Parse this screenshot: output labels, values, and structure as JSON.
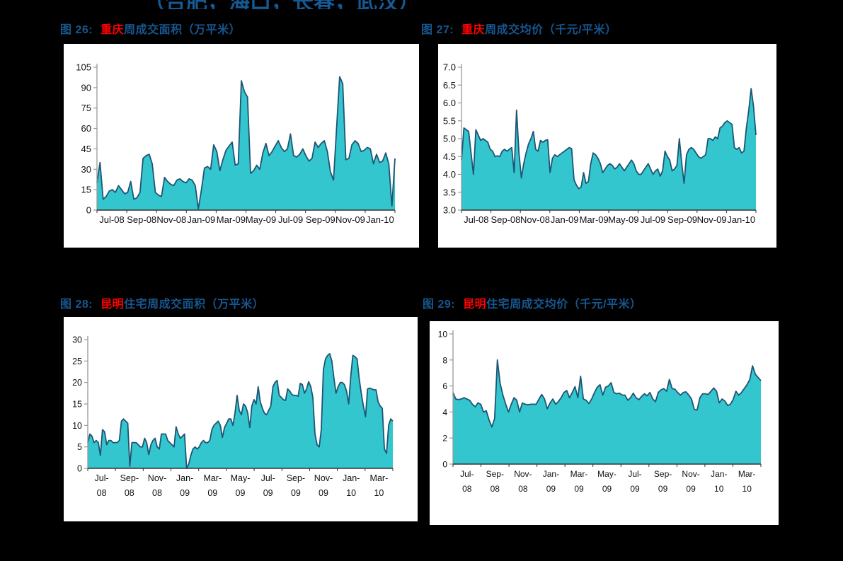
{
  "page": {
    "top_title": "（合肥，海口，长春，武汉）"
  },
  "colors": {
    "page_bg": "#000000",
    "chart_bg": "#FFFFFF",
    "title_blue": "#155A94",
    "caption_blue": "#17568F",
    "city_red": "#FF0000",
    "area_fill": "#34C6CE",
    "area_stroke": "#1D5573",
    "y_axis": "#999999",
    "x_axis": "#333333",
    "tick_text": "#111111"
  },
  "figures": [
    {
      "label": "图 26:",
      "city": "重庆",
      "rest": "周成交面积（万平米）"
    },
    {
      "label": "图 27:",
      "city": "重庆",
      "rest": "周成交均价（千元/平米）"
    },
    {
      "label": "图 28:",
      "city": "昆明",
      "rest": "住宅周成交面积（万平米）"
    },
    {
      "label": "图 29:",
      "city": "昆明",
      "rest": "住宅周成交均价（千元/平米）"
    }
  ],
  "chart_data": [
    {
      "type": "area",
      "title": "重庆周成交面积（万平米）",
      "ylim": [
        0,
        105
      ],
      "yticks": [
        "0",
        "15",
        "30",
        "45",
        "60",
        "75",
        "90",
        "105"
      ],
      "x_label_style": "single",
      "x_labels": [
        "Jul-08",
        "Sep-08",
        "Nov-08",
        "Jan-09",
        "Mar-09",
        "May-09",
        "Jul-09",
        "Sep-09",
        "Nov-09",
        "Jan-10"
      ],
      "values": [
        20,
        35,
        8,
        10,
        14,
        15,
        13,
        18,
        15,
        12,
        13,
        21,
        8,
        9,
        13,
        38,
        40,
        41,
        34,
        13,
        11,
        10,
        24,
        21,
        19,
        18,
        22,
        23,
        21,
        20,
        23,
        22,
        18,
        1,
        15,
        31,
        32,
        30,
        48,
        43,
        29,
        37,
        44,
        47,
        50,
        33,
        34,
        95,
        87,
        83,
        27,
        29,
        33,
        30,
        42,
        49,
        40,
        43,
        47,
        51,
        46,
        43,
        45,
        56,
        40,
        39,
        41,
        45,
        40,
        36,
        38,
        50,
        46,
        49,
        51,
        43,
        28,
        22,
        60,
        98,
        93,
        37,
        38,
        48,
        51,
        49,
        43,
        44,
        46,
        45,
        34,
        41,
        35,
        36,
        42,
        34,
        3,
        38
      ]
    },
    {
      "type": "area",
      "title": "重庆周成交均价（千元/平米）",
      "ylim": [
        3.0,
        7.0
      ],
      "yticks": [
        "3.0",
        "3.5",
        "4.0",
        "4.5",
        "5.0",
        "5.5",
        "6.0",
        "6.5",
        "7.0"
      ],
      "x_label_style": "single",
      "x_labels": [
        "Jul-08",
        "Sep-08",
        "Nov-08",
        "Jan-09",
        "Mar-09",
        "May-09",
        "Jul-09",
        "Sep-09",
        "Nov-09",
        "Jan-10"
      ],
      "values": [
        4.4,
        5.3,
        5.25,
        5.2,
        4.6,
        4.0,
        5.25,
        5.1,
        4.95,
        5.0,
        4.95,
        4.9,
        4.7,
        4.65,
        4.5,
        4.52,
        4.5,
        4.65,
        4.7,
        4.65,
        4.7,
        4.75,
        4.05,
        5.8,
        4.6,
        3.9,
        4.3,
        4.6,
        4.85,
        5.0,
        5.2,
        4.7,
        4.65,
        4.95,
        4.9,
        4.95,
        4.97,
        4.05,
        4.45,
        4.55,
        4.5,
        4.55,
        4.6,
        4.65,
        4.7,
        4.75,
        4.72,
        3.85,
        3.7,
        3.6,
        3.65,
        4.05,
        3.75,
        3.8,
        4.3,
        4.6,
        4.55,
        4.45,
        4.3,
        4.05,
        4.15,
        4.25,
        4.3,
        4.25,
        4.15,
        4.2,
        4.3,
        4.2,
        4.1,
        4.2,
        4.3,
        4.4,
        4.3,
        4.1,
        4.0,
        4.0,
        4.1,
        4.2,
        4.3,
        4.15,
        4.0,
        4.1,
        4.15,
        3.95,
        4.1,
        4.65,
        4.5,
        4.4,
        4.1,
        4.15,
        4.25,
        5.0,
        4.3,
        3.75,
        4.55,
        4.7,
        4.75,
        4.7,
        4.6,
        4.5,
        4.45,
        4.5,
        4.55,
        5.0,
        5.0,
        4.95,
        5.05,
        5.0,
        5.3,
        5.35,
        5.45,
        5.5,
        5.45,
        5.4,
        4.75,
        4.7,
        4.75,
        4.6,
        4.65,
        5.3,
        5.8,
        6.4,
        5.9,
        5.1
      ]
    },
    {
      "type": "area",
      "title": "昆明住宅周成交面积（万平米）",
      "ylim": [
        0,
        30
      ],
      "yticks": [
        "0",
        "5",
        "10",
        "15",
        "20",
        "25",
        "30"
      ],
      "x_label_style": "two-line",
      "x_labels": [
        "Jul-08",
        "Sep-08",
        "Nov-08",
        "Jan-09",
        "Mar-09",
        "May-09",
        "Jul-09",
        "Sep-09",
        "Nov-09",
        "Jan-10",
        "Mar-10"
      ],
      "values": [
        6,
        8,
        7.5,
        6,
        6.5,
        6,
        3,
        9,
        8.5,
        5.5,
        6.5,
        6.5,
        6,
        6,
        6,
        6.5,
        11,
        11.5,
        11,
        10.5,
        0.5,
        6,
        6,
        6,
        5.5,
        5,
        5,
        7,
        6,
        3.2,
        5.5,
        6.5,
        7,
        5,
        4.5,
        8,
        8,
        8,
        6.5,
        6,
        5.5,
        5,
        9.7,
        8,
        7,
        7.5,
        8,
        0,
        1,
        3,
        4.5,
        5,
        4.5,
        5,
        6,
        6.5,
        6,
        6,
        6.5,
        9,
        10,
        10.5,
        11,
        10,
        7.2,
        9.5,
        10.5,
        11.5,
        11.5,
        10,
        13,
        17,
        13.5,
        12.5,
        15,
        14.5,
        13,
        9.5,
        14.5,
        16,
        15,
        19,
        15.5,
        14,
        12.8,
        12.5,
        13.5,
        14.5,
        19,
        20,
        20.5,
        17,
        16.5,
        16,
        15.8,
        18.5,
        18,
        17.2,
        17,
        17,
        16.8,
        19.8,
        19.5,
        17.5,
        18.5,
        20.2,
        19,
        16.5,
        8,
        5.5,
        5,
        9,
        23,
        25.5,
        26.3,
        26.7,
        25,
        21,
        17.5,
        19,
        20,
        20,
        19.5,
        18,
        15,
        21.5,
        26.3,
        26,
        25.5,
        21,
        17.5,
        14.5,
        12,
        18.5,
        18.7,
        18.5,
        18.3,
        18.3,
        15.5,
        14.5,
        14,
        4.5,
        3.5,
        10,
        11.5,
        11
      ]
    },
    {
      "type": "area",
      "title": "昆明住宅周成交均价（千元/平米）",
      "ylim": [
        0,
        10
      ],
      "yticks": [
        "0",
        "2",
        "4",
        "6",
        "8",
        "10"
      ],
      "x_label_style": "two-line",
      "x_labels": [
        "Jul-08",
        "Sep-08",
        "Nov-08",
        "Jan-09",
        "Mar-09",
        "May-09",
        "Jul-09",
        "Sep-09",
        "Nov-09",
        "Jan-10",
        "Mar-10"
      ],
      "values": [
        5.5,
        5.0,
        4.95,
        5.0,
        5.1,
        5.0,
        4.9,
        4.6,
        4.4,
        4.7,
        4.6,
        4.0,
        4.1,
        3.4,
        2.85,
        3.5,
        8.0,
        6.2,
        5.3,
        4.6,
        4.0,
        4.6,
        5.1,
        4.9,
        4.0,
        4.7,
        4.6,
        4.55,
        4.6,
        4.6,
        4.6,
        5.0,
        5.35,
        5.0,
        4.25,
        4.7,
        5.0,
        4.6,
        4.8,
        5.1,
        5.5,
        5.65,
        5.1,
        5.5,
        5.95,
        5.1,
        6.75,
        5.0,
        4.9,
        4.65,
        5.0,
        5.5,
        5.9,
        6.1,
        5.3,
        5.9,
        6.0,
        6.25,
        5.5,
        5.4,
        5.45,
        5.3,
        5.3,
        4.9,
        5.1,
        5.45,
        5.1,
        4.95,
        5.2,
        5.4,
        5.25,
        5.5,
        5.0,
        4.8,
        5.5,
        5.7,
        5.8,
        5.6,
        6.5,
        5.8,
        5.75,
        5.5,
        5.3,
        5.5,
        5.55,
        5.3,
        5.0,
        4.2,
        4.15,
        5.1,
        5.4,
        5.4,
        5.35,
        5.6,
        5.85,
        5.6,
        4.7,
        5.0,
        4.85,
        4.5,
        4.6,
        4.95,
        5.6,
        5.3,
        5.5,
        5.8,
        6.1,
        6.5,
        7.55,
        6.9,
        6.65,
        6.4
      ]
    }
  ]
}
